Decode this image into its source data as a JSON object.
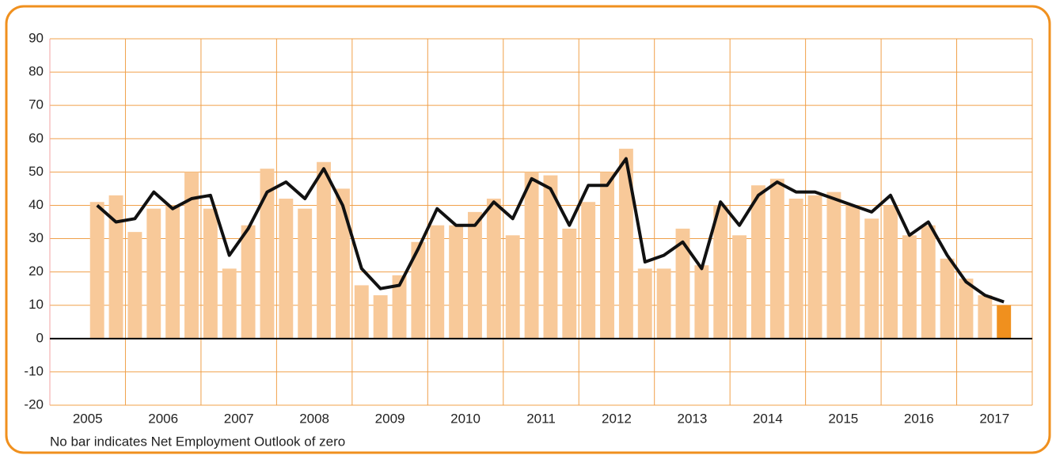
{
  "chart_data": {
    "type": "bar-line",
    "categories": [
      "2005",
      "2006",
      "2007",
      "2008",
      "2009",
      "2010",
      "2011",
      "2012",
      "2013",
      "2014",
      "2015",
      "2016",
      "2017"
    ],
    "bars": [
      [
        null,
        null,
        41,
        43
      ],
      [
        32,
        39,
        40,
        50
      ],
      [
        39,
        21,
        34,
        51
      ],
      [
        42,
        39,
        53,
        45
      ],
      [
        16,
        13,
        19,
        29
      ],
      [
        34,
        34,
        38,
        42
      ],
      [
        31,
        50,
        49,
        33
      ],
      [
        41,
        50,
        57,
        21
      ],
      [
        21,
        33,
        22,
        40
      ],
      [
        31,
        46,
        48,
        42
      ],
      [
        43,
        44,
        40,
        36
      ],
      [
        40,
        31,
        34,
        24
      ],
      [
        18,
        13,
        10
      ]
    ],
    "line": [
      [
        null,
        null,
        40,
        35
      ],
      [
        36,
        44,
        39,
        42
      ],
      [
        43,
        25,
        33,
        44
      ],
      [
        47,
        42,
        51,
        40
      ],
      [
        21,
        15,
        16,
        27
      ],
      [
        39,
        34,
        34,
        41
      ],
      [
        36,
        48,
        45,
        34
      ],
      [
        46,
        46,
        54,
        23
      ],
      [
        25,
        29,
        21,
        41
      ],
      [
        34,
        43,
        47,
        44
      ],
      [
        44,
        42,
        40,
        38
      ],
      [
        43,
        31,
        35,
        25
      ],
      [
        17,
        13,
        11
      ]
    ],
    "bar_color": "#f8c999",
    "highlight_color": "#f0901e",
    "line_color": "#111111",
    "grid_color": "#f0a04a",
    "ylim": [
      -20,
      90
    ],
    "yticks": [
      -20,
      -10,
      0,
      10,
      20,
      30,
      40,
      50,
      60,
      70,
      80,
      90
    ],
    "grid": true,
    "note": "No bar indicates Net Employment Outlook of zero"
  }
}
